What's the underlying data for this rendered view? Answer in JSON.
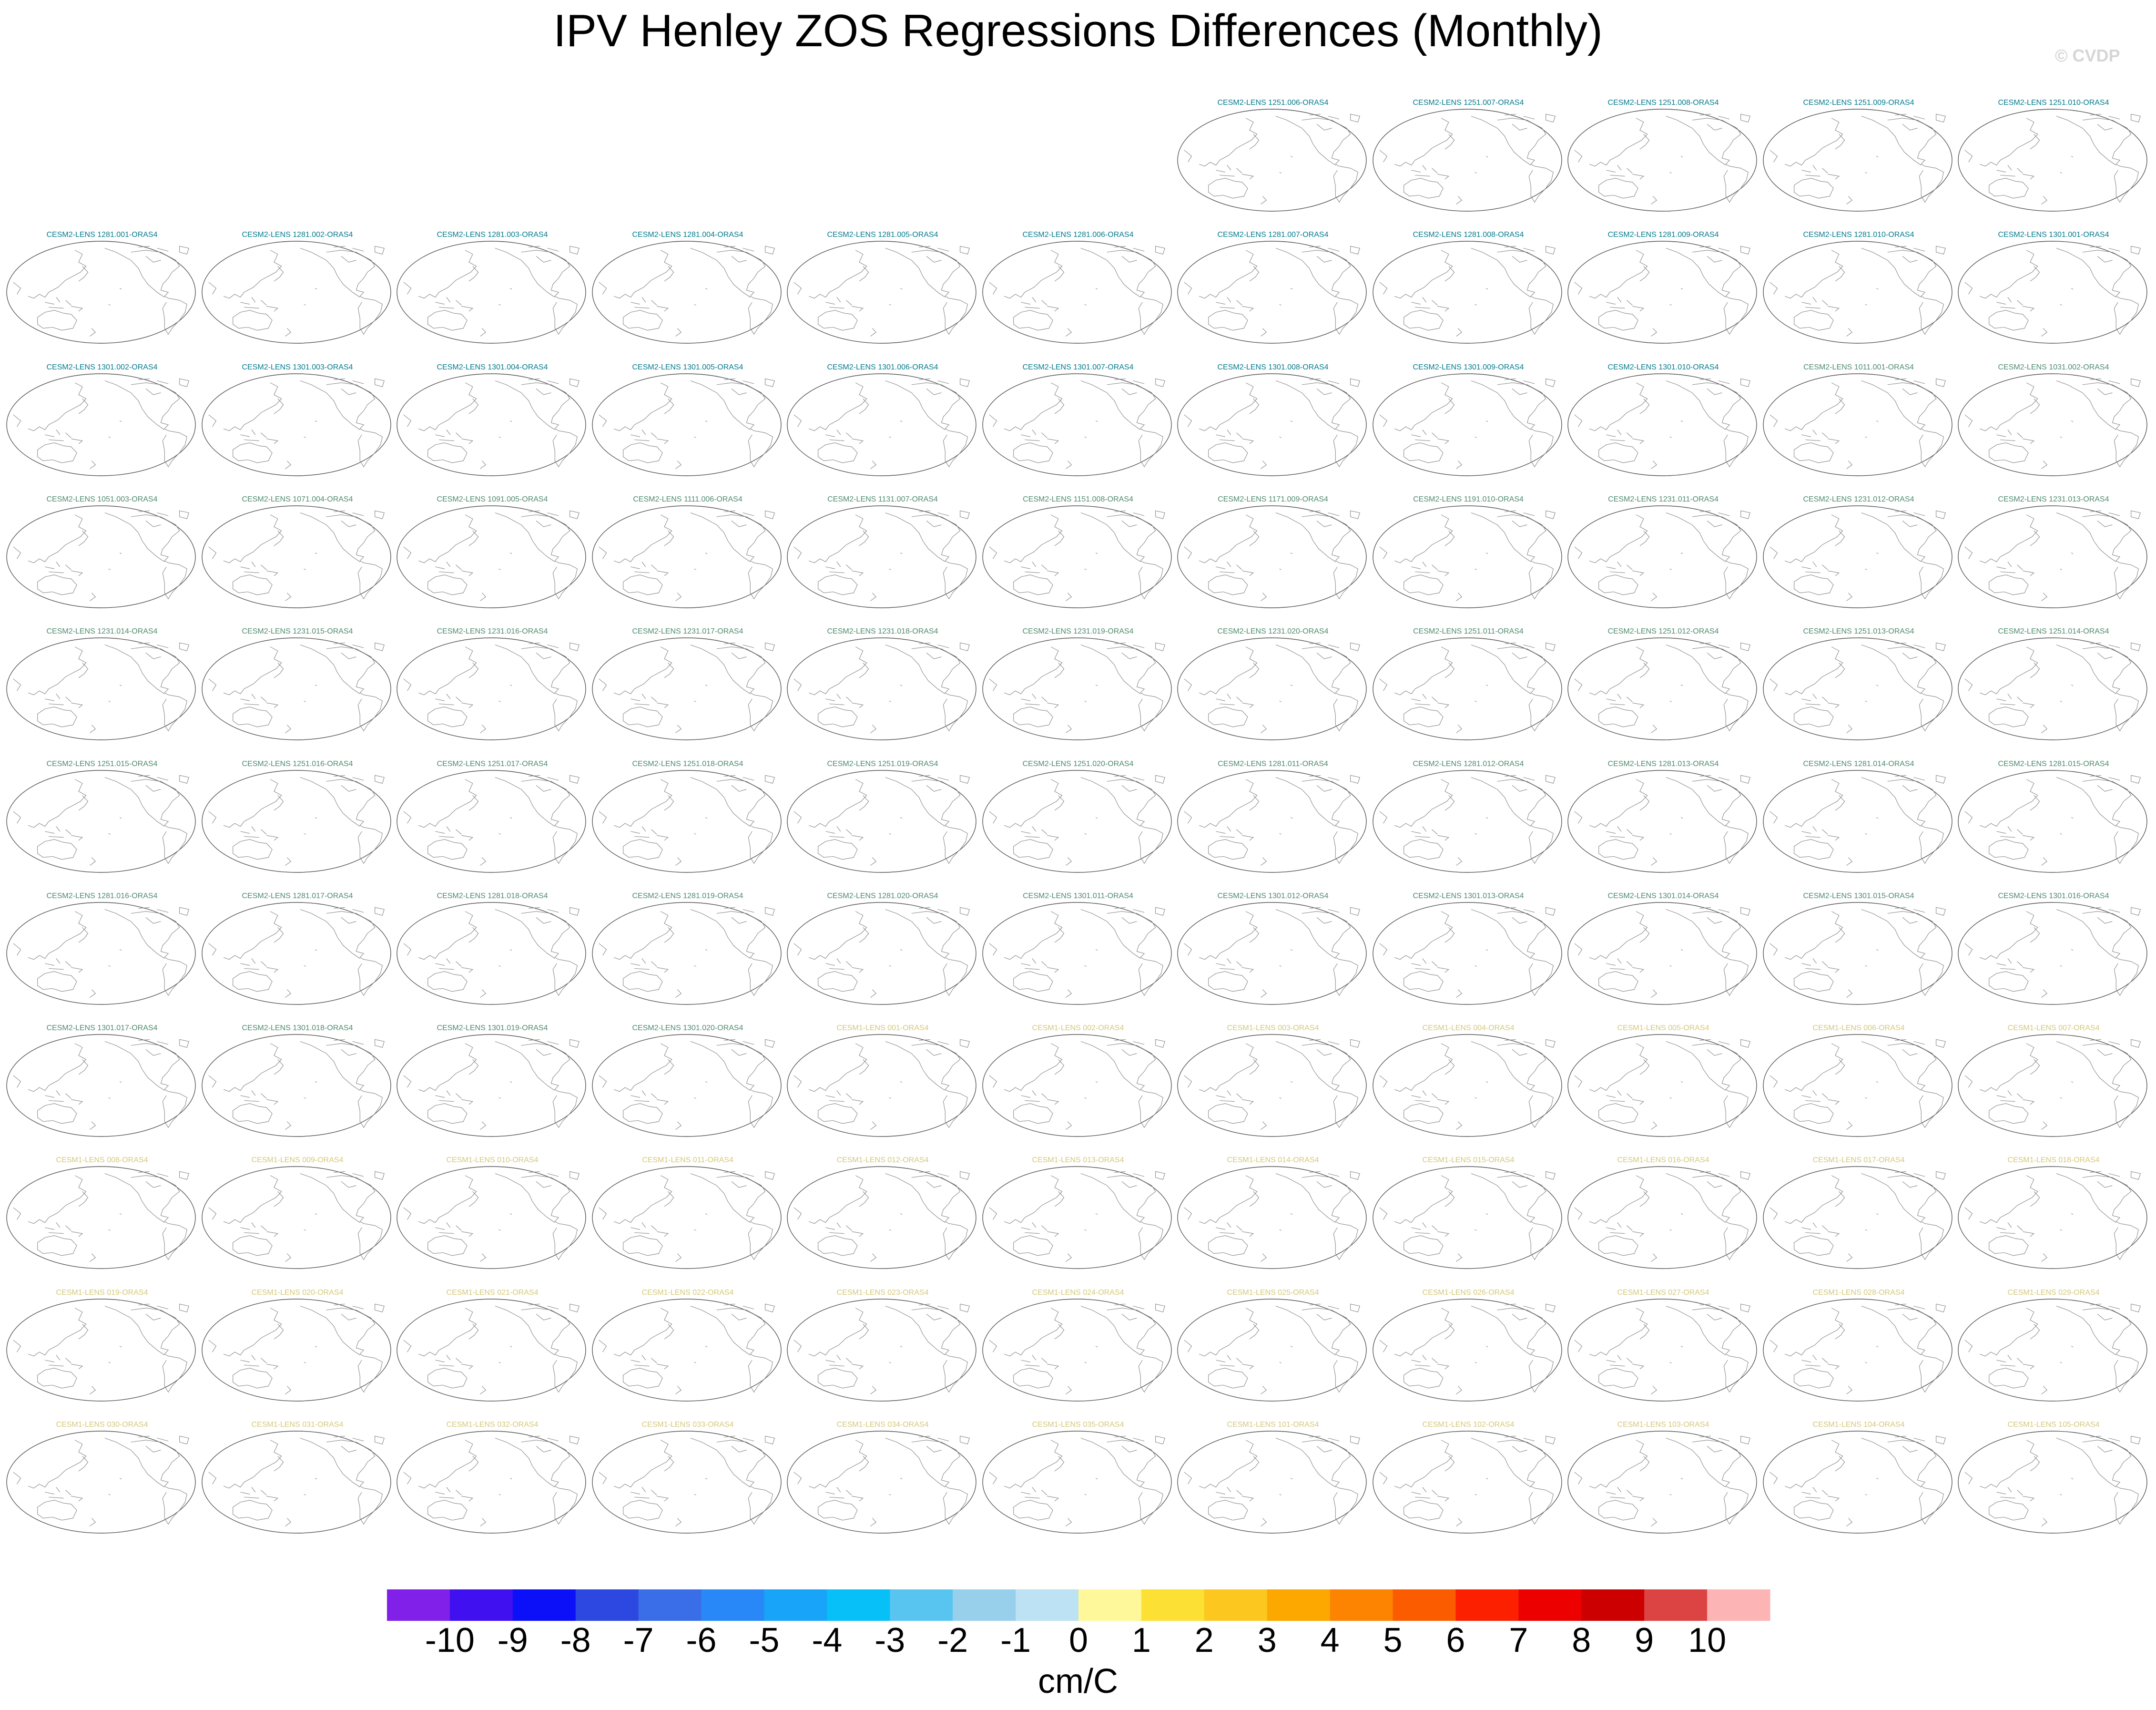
{
  "title": "IPV Henley ZOS Regressions Differences (Monthly)",
  "credit": "© CVDP",
  "colors": {
    "cesm2_cmip6": "#007a8c",
    "cesm2_smbb": "#4e8a6e",
    "cesm1": "#d4c87a",
    "coastline": "#8a8a8a",
    "map_border": "#555555"
  },
  "panel_rows": [
    {
      "empty_leading": 6,
      "panels": [
        {
          "label": "CESM2-LENS 1251.006-ORAS4",
          "group": "cesm2_cmip6"
        },
        {
          "label": "CESM2-LENS 1251.007-ORAS4",
          "group": "cesm2_cmip6"
        },
        {
          "label": "CESM2-LENS 1251.008-ORAS4",
          "group": "cesm2_cmip6"
        },
        {
          "label": "CESM2-LENS 1251.009-ORAS4",
          "group": "cesm2_cmip6"
        },
        {
          "label": "CESM2-LENS 1251.010-ORAS4",
          "group": "cesm2_cmip6"
        }
      ]
    },
    {
      "empty_leading": 0,
      "panels": [
        {
          "label": "CESM2-LENS 1281.001-ORAS4",
          "group": "cesm2_cmip6"
        },
        {
          "label": "CESM2-LENS 1281.002-ORAS4",
          "group": "cesm2_cmip6"
        },
        {
          "label": "CESM2-LENS 1281.003-ORAS4",
          "group": "cesm2_cmip6"
        },
        {
          "label": "CESM2-LENS 1281.004-ORAS4",
          "group": "cesm2_cmip6"
        },
        {
          "label": "CESM2-LENS 1281.005-ORAS4",
          "group": "cesm2_cmip6"
        },
        {
          "label": "CESM2-LENS 1281.006-ORAS4",
          "group": "cesm2_cmip6"
        },
        {
          "label": "CESM2-LENS 1281.007-ORAS4",
          "group": "cesm2_cmip6"
        },
        {
          "label": "CESM2-LENS 1281.008-ORAS4",
          "group": "cesm2_cmip6"
        },
        {
          "label": "CESM2-LENS 1281.009-ORAS4",
          "group": "cesm2_cmip6"
        },
        {
          "label": "CESM2-LENS 1281.010-ORAS4",
          "group": "cesm2_cmip6"
        },
        {
          "label": "CESM2-LENS 1301.001-ORAS4",
          "group": "cesm2_cmip6"
        }
      ]
    },
    {
      "empty_leading": 0,
      "panels": [
        {
          "label": "CESM2-LENS 1301.002-ORAS4",
          "group": "cesm2_cmip6"
        },
        {
          "label": "CESM2-LENS 1301.003-ORAS4",
          "group": "cesm2_cmip6"
        },
        {
          "label": "CESM2-LENS 1301.004-ORAS4",
          "group": "cesm2_cmip6"
        },
        {
          "label": "CESM2-LENS 1301.005-ORAS4",
          "group": "cesm2_cmip6"
        },
        {
          "label": "CESM2-LENS 1301.006-ORAS4",
          "group": "cesm2_cmip6"
        },
        {
          "label": "CESM2-LENS 1301.007-ORAS4",
          "group": "cesm2_cmip6"
        },
        {
          "label": "CESM2-LENS 1301.008-ORAS4",
          "group": "cesm2_cmip6"
        },
        {
          "label": "CESM2-LENS 1301.009-ORAS4",
          "group": "cesm2_cmip6"
        },
        {
          "label": "CESM2-LENS 1301.010-ORAS4",
          "group": "cesm2_cmip6"
        },
        {
          "label": "CESM2-LENS 1011.001-ORAS4",
          "group": "cesm2_smbb"
        },
        {
          "label": "CESM2-LENS 1031.002-ORAS4",
          "group": "cesm2_smbb"
        }
      ]
    },
    {
      "empty_leading": 0,
      "panels": [
        {
          "label": "CESM2-LENS 1051.003-ORAS4",
          "group": "cesm2_smbb"
        },
        {
          "label": "CESM2-LENS 1071.004-ORAS4",
          "group": "cesm2_smbb"
        },
        {
          "label": "CESM2-LENS 1091.005-ORAS4",
          "group": "cesm2_smbb"
        },
        {
          "label": "CESM2-LENS 1111.006-ORAS4",
          "group": "cesm2_smbb"
        },
        {
          "label": "CESM2-LENS 1131.007-ORAS4",
          "group": "cesm2_smbb"
        },
        {
          "label": "CESM2-LENS 1151.008-ORAS4",
          "group": "cesm2_smbb"
        },
        {
          "label": "CESM2-LENS 1171.009-ORAS4",
          "group": "cesm2_smbb"
        },
        {
          "label": "CESM2-LENS 1191.010-ORAS4",
          "group": "cesm2_smbb"
        },
        {
          "label": "CESM2-LENS 1231.011-ORAS4",
          "group": "cesm2_smbb"
        },
        {
          "label": "CESM2-LENS 1231.012-ORAS4",
          "group": "cesm2_smbb"
        },
        {
          "label": "CESM2-LENS 1231.013-ORAS4",
          "group": "cesm2_smbb"
        }
      ]
    },
    {
      "empty_leading": 0,
      "panels": [
        {
          "label": "CESM2-LENS 1231.014-ORAS4",
          "group": "cesm2_smbb"
        },
        {
          "label": "CESM2-LENS 1231.015-ORAS4",
          "group": "cesm2_smbb"
        },
        {
          "label": "CESM2-LENS 1231.016-ORAS4",
          "group": "cesm2_smbb"
        },
        {
          "label": "CESM2-LENS 1231.017-ORAS4",
          "group": "cesm2_smbb"
        },
        {
          "label": "CESM2-LENS 1231.018-ORAS4",
          "group": "cesm2_smbb"
        },
        {
          "label": "CESM2-LENS 1231.019-ORAS4",
          "group": "cesm2_smbb"
        },
        {
          "label": "CESM2-LENS 1231.020-ORAS4",
          "group": "cesm2_smbb"
        },
        {
          "label": "CESM2-LENS 1251.011-ORAS4",
          "group": "cesm2_smbb"
        },
        {
          "label": "CESM2-LENS 1251.012-ORAS4",
          "group": "cesm2_smbb"
        },
        {
          "label": "CESM2-LENS 1251.013-ORAS4",
          "group": "cesm2_smbb"
        },
        {
          "label": "CESM2-LENS 1251.014-ORAS4",
          "group": "cesm2_smbb"
        }
      ]
    },
    {
      "empty_leading": 0,
      "panels": [
        {
          "label": "CESM2-LENS 1251.015-ORAS4",
          "group": "cesm2_smbb"
        },
        {
          "label": "CESM2-LENS 1251.016-ORAS4",
          "group": "cesm2_smbb"
        },
        {
          "label": "CESM2-LENS 1251.017-ORAS4",
          "group": "cesm2_smbb"
        },
        {
          "label": "CESM2-LENS 1251.018-ORAS4",
          "group": "cesm2_smbb"
        },
        {
          "label": "CESM2-LENS 1251.019-ORAS4",
          "group": "cesm2_smbb"
        },
        {
          "label": "CESM2-LENS 1251.020-ORAS4",
          "group": "cesm2_smbb"
        },
        {
          "label": "CESM2-LENS 1281.011-ORAS4",
          "group": "cesm2_smbb"
        },
        {
          "label": "CESM2-LENS 1281.012-ORAS4",
          "group": "cesm2_smbb"
        },
        {
          "label": "CESM2-LENS 1281.013-ORAS4",
          "group": "cesm2_smbb"
        },
        {
          "label": "CESM2-LENS 1281.014-ORAS4",
          "group": "cesm2_smbb"
        },
        {
          "label": "CESM2-LENS 1281.015-ORAS4",
          "group": "cesm2_smbb"
        }
      ]
    },
    {
      "empty_leading": 0,
      "panels": [
        {
          "label": "CESM2-LENS 1281.016-ORAS4",
          "group": "cesm2_smbb"
        },
        {
          "label": "CESM2-LENS 1281.017-ORAS4",
          "group": "cesm2_smbb"
        },
        {
          "label": "CESM2-LENS 1281.018-ORAS4",
          "group": "cesm2_smbb"
        },
        {
          "label": "CESM2-LENS 1281.019-ORAS4",
          "group": "cesm2_smbb"
        },
        {
          "label": "CESM2-LENS 1281.020-ORAS4",
          "group": "cesm2_smbb"
        },
        {
          "label": "CESM2-LENS 1301.011-ORAS4",
          "group": "cesm2_smbb"
        },
        {
          "label": "CESM2-LENS 1301.012-ORAS4",
          "group": "cesm2_smbb"
        },
        {
          "label": "CESM2-LENS 1301.013-ORAS4",
          "group": "cesm2_smbb"
        },
        {
          "label": "CESM2-LENS 1301.014-ORAS4",
          "group": "cesm2_smbb"
        },
        {
          "label": "CESM2-LENS 1301.015-ORAS4",
          "group": "cesm2_smbb"
        },
        {
          "label": "CESM2-LENS 1301.016-ORAS4",
          "group": "cesm2_smbb"
        }
      ]
    },
    {
      "empty_leading": 0,
      "panels": [
        {
          "label": "CESM2-LENS 1301.017-ORAS4",
          "group": "cesm2_smbb"
        },
        {
          "label": "CESM2-LENS 1301.018-ORAS4",
          "group": "cesm2_smbb"
        },
        {
          "label": "CESM2-LENS 1301.019-ORAS4",
          "group": "cesm2_smbb"
        },
        {
          "label": "CESM2-LENS 1301.020-ORAS4",
          "group": "cesm2_smbb"
        },
        {
          "label": "CESM1-LENS 001-ORAS4",
          "group": "cesm1"
        },
        {
          "label": "CESM1-LENS 002-ORAS4",
          "group": "cesm1"
        },
        {
          "label": "CESM1-LENS 003-ORAS4",
          "group": "cesm1"
        },
        {
          "label": "CESM1-LENS 004-ORAS4",
          "group": "cesm1"
        },
        {
          "label": "CESM1-LENS 005-ORAS4",
          "group": "cesm1"
        },
        {
          "label": "CESM1-LENS 006-ORAS4",
          "group": "cesm1"
        },
        {
          "label": "CESM1-LENS 007-ORAS4",
          "group": "cesm1"
        }
      ]
    },
    {
      "empty_leading": 0,
      "panels": [
        {
          "label": "CESM1-LENS 008-ORAS4",
          "group": "cesm1"
        },
        {
          "label": "CESM1-LENS 009-ORAS4",
          "group": "cesm1"
        },
        {
          "label": "CESM1-LENS 010-ORAS4",
          "group": "cesm1"
        },
        {
          "label": "CESM1-LENS 011-ORAS4",
          "group": "cesm1"
        },
        {
          "label": "CESM1-LENS 012-ORAS4",
          "group": "cesm1"
        },
        {
          "label": "CESM1-LENS 013-ORAS4",
          "group": "cesm1"
        },
        {
          "label": "CESM1-LENS 014-ORAS4",
          "group": "cesm1"
        },
        {
          "label": "CESM1-LENS 015-ORAS4",
          "group": "cesm1"
        },
        {
          "label": "CESM1-LENS 016-ORAS4",
          "group": "cesm1"
        },
        {
          "label": "CESM1-LENS 017-ORAS4",
          "group": "cesm1"
        },
        {
          "label": "CESM1-LENS 018-ORAS4",
          "group": "cesm1"
        }
      ]
    },
    {
      "empty_leading": 0,
      "panels": [
        {
          "label": "CESM1-LENS 019-ORAS4",
          "group": "cesm1"
        },
        {
          "label": "CESM1-LENS 020-ORAS4",
          "group": "cesm1"
        },
        {
          "label": "CESM1-LENS 021-ORAS4",
          "group": "cesm1"
        },
        {
          "label": "CESM1-LENS 022-ORAS4",
          "group": "cesm1"
        },
        {
          "label": "CESM1-LENS 023-ORAS4",
          "group": "cesm1"
        },
        {
          "label": "CESM1-LENS 024-ORAS4",
          "group": "cesm1"
        },
        {
          "label": "CESM1-LENS 025-ORAS4",
          "group": "cesm1"
        },
        {
          "label": "CESM1-LENS 026-ORAS4",
          "group": "cesm1"
        },
        {
          "label": "CESM1-LENS 027-ORAS4",
          "group": "cesm1"
        },
        {
          "label": "CESM1-LENS 028-ORAS4",
          "group": "cesm1"
        },
        {
          "label": "CESM1-LENS 029-ORAS4",
          "group": "cesm1"
        }
      ]
    },
    {
      "empty_leading": 0,
      "panels": [
        {
          "label": "CESM1-LENS 030-ORAS4",
          "group": "cesm1"
        },
        {
          "label": "CESM1-LENS 031-ORAS4",
          "group": "cesm1"
        },
        {
          "label": "CESM1-LENS 032-ORAS4",
          "group": "cesm1"
        },
        {
          "label": "CESM1-LENS 033-ORAS4",
          "group": "cesm1"
        },
        {
          "label": "CESM1-LENS 034-ORAS4",
          "group": "cesm1"
        },
        {
          "label": "CESM1-LENS 035-ORAS4",
          "group": "cesm1"
        },
        {
          "label": "CESM1-LENS 101-ORAS4",
          "group": "cesm1"
        },
        {
          "label": "CESM1-LENS 102-ORAS4",
          "group": "cesm1"
        },
        {
          "label": "CESM1-LENS 103-ORAS4",
          "group": "cesm1"
        },
        {
          "label": "CESM1-LENS 104-ORAS4",
          "group": "cesm1"
        },
        {
          "label": "CESM1-LENS 105-ORAS4",
          "group": "cesm1"
        }
      ]
    }
  ],
  "chart_data": {
    "type": "heatmap",
    "title": "IPV Henley ZOS Regressions Differences (Monthly)",
    "projection": "global robinson, Pacific-centered",
    "field": "no shading visible (all panels blank / missing data)",
    "colorbar": {
      "orientation": "horizontal",
      "units": "cm/C",
      "tick_labels": [
        "-10",
        "-9",
        "-8",
        "-7",
        "-6",
        "-5",
        "-4",
        "-3",
        "-2",
        "-1",
        "0",
        "1",
        "2",
        "3",
        "4",
        "5",
        "6",
        "7",
        "8",
        "9",
        "10"
      ],
      "levels": [
        -10,
        -9,
        -8,
        -7,
        -6,
        -5,
        -4,
        -3,
        -2,
        -1,
        0,
        1,
        2,
        3,
        4,
        5,
        6,
        7,
        8,
        9,
        10
      ],
      "colors": [
        "#8020e8",
        "#4010f0",
        "#0c10f8",
        "#2c48e0",
        "#3a6ee8",
        "#2888f8",
        "#18a4f8",
        "#08c0f8",
        "#58c4f0",
        "#98d0ec",
        "#bce2f4",
        "#fff89a",
        "#fce034",
        "#fcc820",
        "#fca800",
        "#fc8400",
        "#fc5c00",
        "#fc2000",
        "#ec0000",
        "#cc0000",
        "#dc4444",
        "#fcb4b4"
      ]
    }
  }
}
